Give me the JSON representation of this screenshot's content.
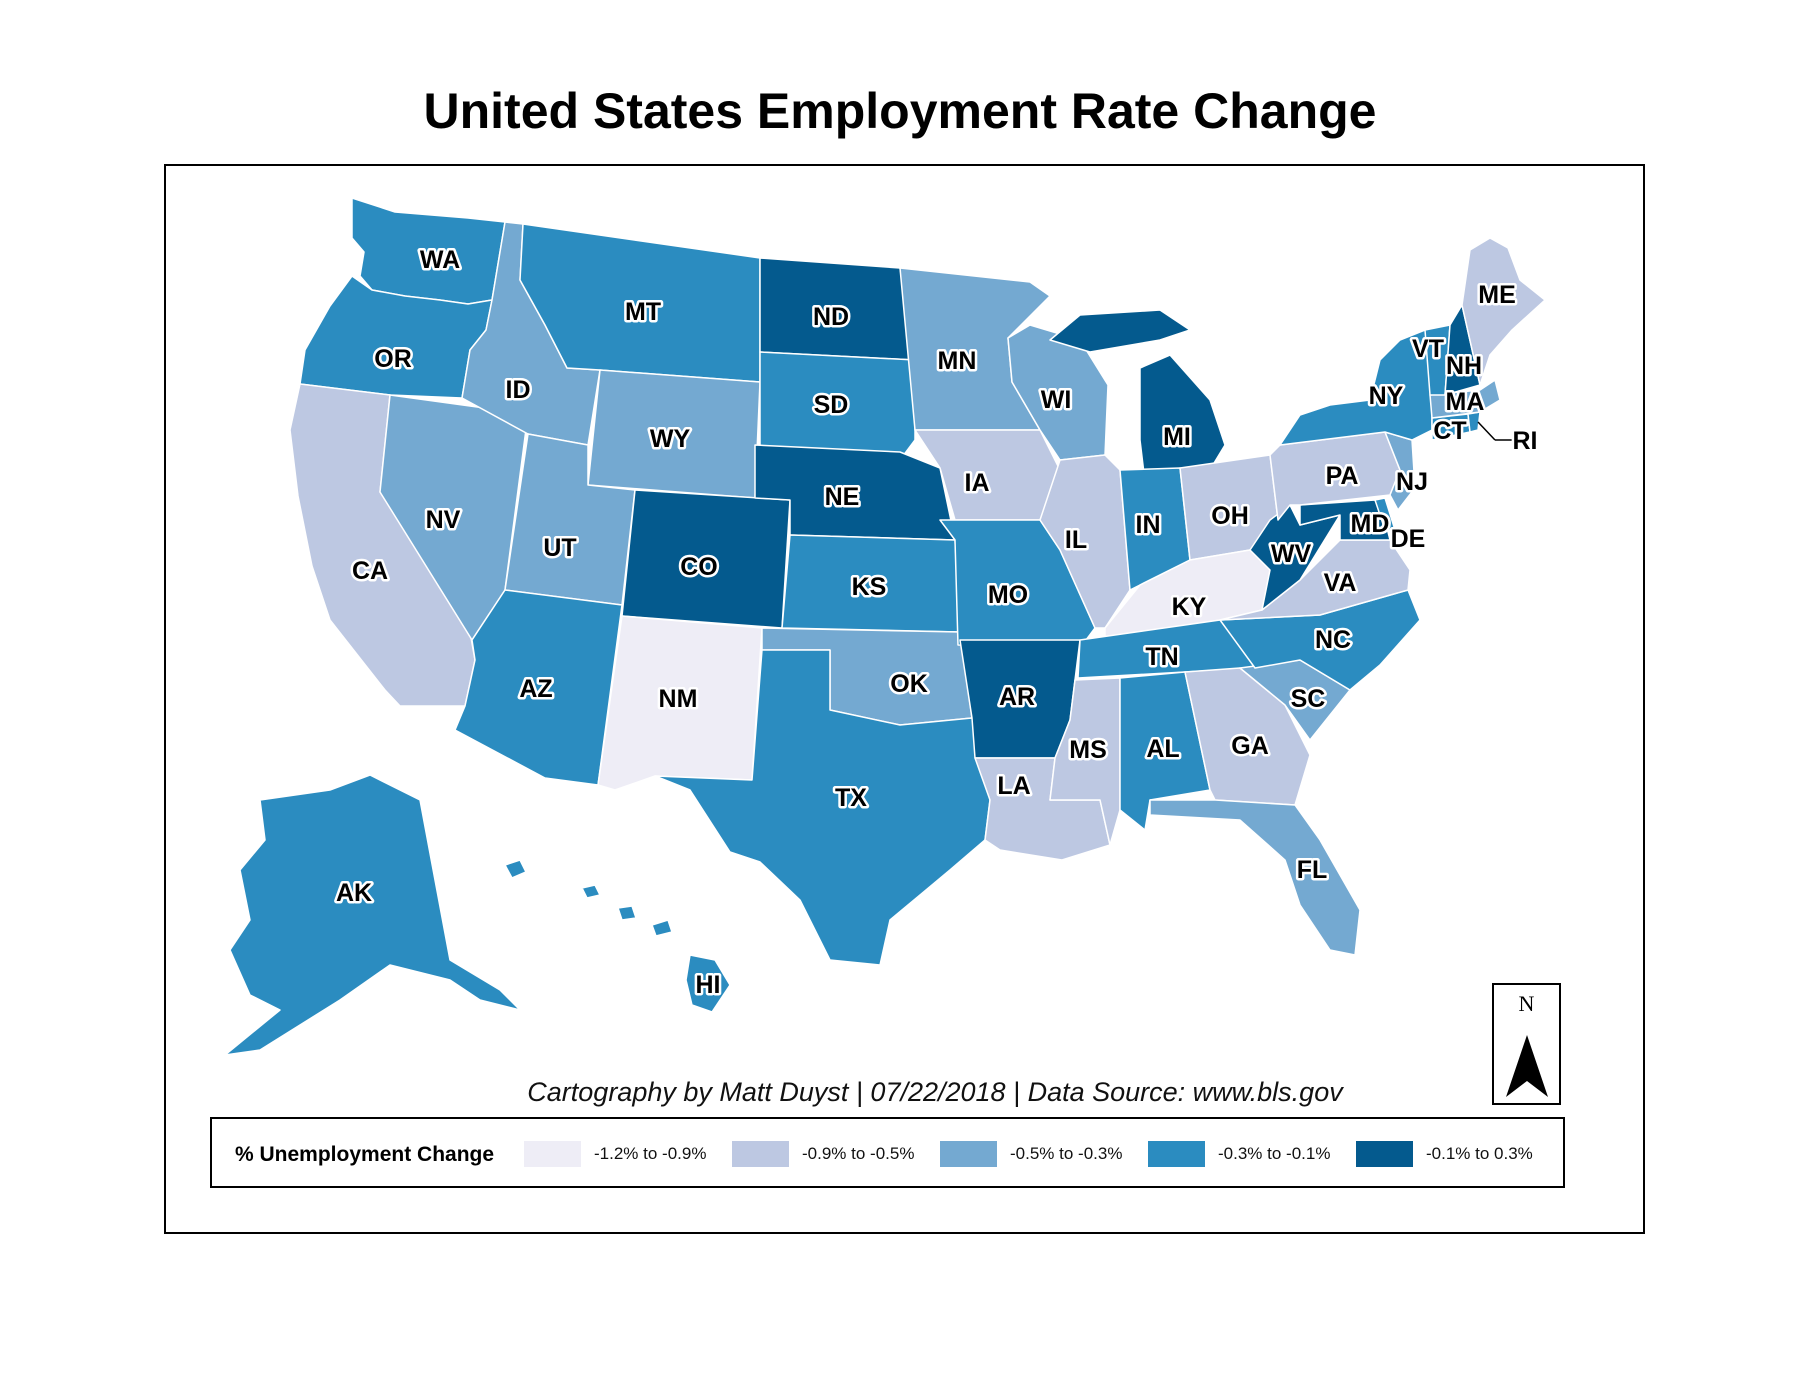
{
  "title": "United States Employment Rate Change",
  "credit": "Cartography by Matt Duyst | 07/22/2018 | Data Source: www.bls.gov",
  "north_arrow": "N",
  "legend": {
    "title": "% Unemployment Change",
    "classes": [
      {
        "label": "-1.2% to -0.9%",
        "color": "#eeedf6"
      },
      {
        "label": "-0.9% to -0.5%",
        "color": "#bdc8e2"
      },
      {
        "label": "-0.5% to -0.3%",
        "color": "#74a9d1"
      },
      {
        "label": "-0.3% to -0.1%",
        "color": "#2b8cc0"
      },
      {
        "label": "-0.1% to 0.3%",
        "color": "#045a8e"
      }
    ]
  },
  "states": [
    {
      "label": "WA",
      "class": 3
    },
    {
      "label": "OR",
      "class": 3
    },
    {
      "label": "CA",
      "class": 1
    },
    {
      "label": "NV",
      "class": 2
    },
    {
      "label": "ID",
      "class": 2
    },
    {
      "label": "MT",
      "class": 3
    },
    {
      "label": "WY",
      "class": 2
    },
    {
      "label": "UT",
      "class": 2
    },
    {
      "label": "AZ",
      "class": 3
    },
    {
      "label": "CO",
      "class": 4
    },
    {
      "label": "NM",
      "class": 0
    },
    {
      "label": "ND",
      "class": 4
    },
    {
      "label": "SD",
      "class": 3
    },
    {
      "label": "NE",
      "class": 4
    },
    {
      "label": "KS",
      "class": 3
    },
    {
      "label": "OK",
      "class": 2
    },
    {
      "label": "TX",
      "class": 3
    },
    {
      "label": "MN",
      "class": 2
    },
    {
      "label": "IA",
      "class": 1
    },
    {
      "label": "MO",
      "class": 3
    },
    {
      "label": "AR",
      "class": 4
    },
    {
      "label": "LA",
      "class": 1
    },
    {
      "label": "WI",
      "class": 2
    },
    {
      "label": "IL",
      "class": 1
    },
    {
      "label": "MI",
      "class": 4
    },
    {
      "label": "IN",
      "class": 3
    },
    {
      "label": "OH",
      "class": 1
    },
    {
      "label": "KY",
      "class": 0
    },
    {
      "label": "TN",
      "class": 3
    },
    {
      "label": "MS",
      "class": 1
    },
    {
      "label": "AL",
      "class": 3
    },
    {
      "label": "GA",
      "class": 1
    },
    {
      "label": "FL",
      "class": 2
    },
    {
      "label": "SC",
      "class": 2
    },
    {
      "label": "NC",
      "class": 3
    },
    {
      "label": "VA",
      "class": 1
    },
    {
      "label": "WV",
      "class": 4
    },
    {
      "label": "PA",
      "class": 1
    },
    {
      "label": "NY",
      "class": 3
    },
    {
      "label": "NJ",
      "class": 2
    },
    {
      "label": "DE",
      "class": 3
    },
    {
      "label": "MD",
      "class": 4
    },
    {
      "label": "CT",
      "class": 3
    },
    {
      "label": "RI",
      "class": 3
    },
    {
      "label": "MA",
      "class": 2
    },
    {
      "label": "VT",
      "class": 3
    },
    {
      "label": "NH",
      "class": 4
    },
    {
      "label": "ME",
      "class": 1
    },
    {
      "label": "AK",
      "class": 3
    },
    {
      "label": "HI",
      "class": 3
    }
  ]
}
